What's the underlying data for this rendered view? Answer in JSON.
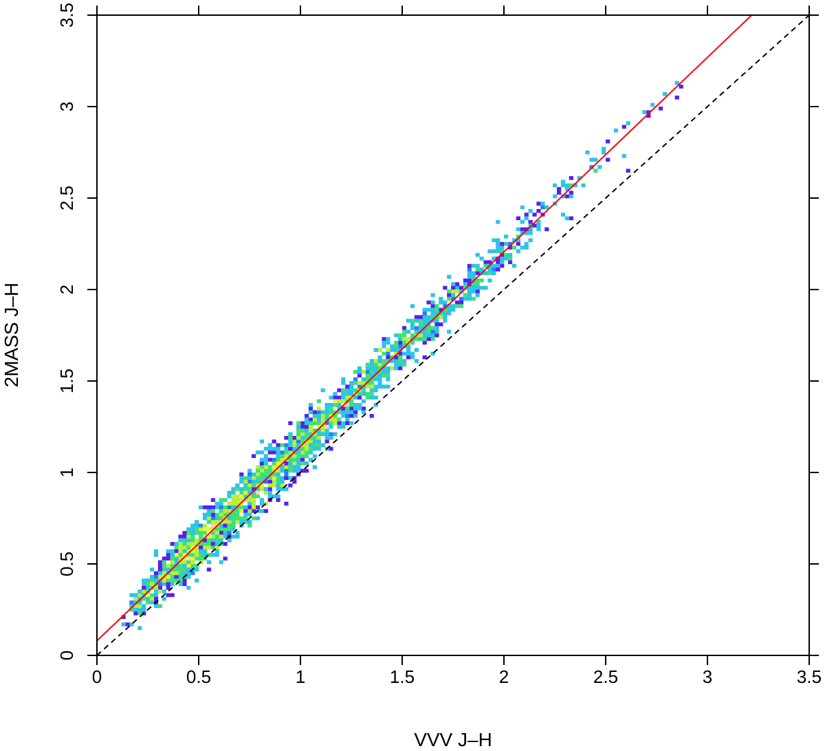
{
  "chart_data": {
    "type": "heatmap",
    "subtype": "binned density scatter with overlaid lines",
    "title": "",
    "xlabel": "VVV J–H",
    "ylabel": "2MASS J–H",
    "xlim": [
      0,
      3.5
    ],
    "ylim": [
      0,
      3.5
    ],
    "xticks": [
      "0",
      "0.5",
      "1",
      "1.5",
      "2",
      "2.5",
      "3",
      "3.5"
    ],
    "yticks": [
      "0",
      "0.5",
      "1",
      "1.5",
      "2",
      "2.5",
      "3",
      "3.5"
    ],
    "xtick_values": [
      0,
      0.5,
      1,
      1.5,
      2,
      2.5,
      3,
      3.5
    ],
    "ytick_values": [
      0,
      0.5,
      1,
      1.5,
      2,
      2.5,
      3,
      3.5
    ],
    "bin_size": 0.02,
    "density_colors": [
      "#5a1ff0",
      "#2a7cf2",
      "#2ec4e6",
      "#3fe07a",
      "#b8f03c",
      "#f2f23a",
      "#f7d9a8"
    ],
    "density_profile": {
      "x": [
        0.15,
        0.25,
        0.35,
        0.45,
        0.55,
        0.65,
        0.75,
        0.85,
        0.95,
        1.05,
        1.15,
        1.25,
        1.35,
        1.45,
        1.55,
        1.65,
        1.75,
        1.85,
        1.95,
        2.05,
        2.15,
        2.25,
        2.35,
        2.45,
        2.55,
        2.65,
        2.75,
        2.85
      ],
      "relative_density": [
        0.05,
        0.45,
        0.85,
        1.0,
        1.0,
        0.95,
        0.9,
        0.85,
        0.8,
        0.72,
        0.65,
        0.58,
        0.5,
        0.45,
        0.4,
        0.35,
        0.3,
        0.25,
        0.2,
        0.16,
        0.12,
        0.09,
        0.07,
        0.05,
        0.04,
        0.03,
        0.02,
        0.01
      ],
      "scatter_width": [
        0.04,
        0.05,
        0.06,
        0.065,
        0.07,
        0.07,
        0.07,
        0.07,
        0.065,
        0.065,
        0.06,
        0.06,
        0.06,
        0.06,
        0.055,
        0.055,
        0.055,
        0.055,
        0.055,
        0.055,
        0.055,
        0.06,
        0.06,
        0.06,
        0.06,
        0.06,
        0.06,
        0.06
      ]
    },
    "lines": [
      {
        "style": "solid",
        "color": "#ff0000",
        "intercept": 0.08,
        "slope": 1.063
      },
      {
        "style": "dashed",
        "color": "#000000",
        "intercept": 0.0,
        "slope": 1.0
      }
    ],
    "grid": false
  }
}
